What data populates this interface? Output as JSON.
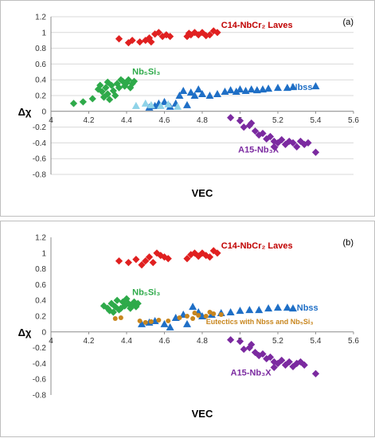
{
  "colors": {
    "laves": "#e02020",
    "laves_minor": "#8b1a1a",
    "nb5si3": "#2eaa4a",
    "nb5si3_light": "#5fd08a",
    "nbss": "#1f6fc6",
    "nbss_light": "#8fd3e8",
    "a15": "#7b2aa0",
    "eutectic": "#c8861e"
  },
  "chart_data": [
    {
      "type": "scatter",
      "panel": "(a)",
      "xlabel": "VEC",
      "ylabel": "Δχ",
      "xlim": [
        4,
        5.6
      ],
      "ylim": [
        -0.8,
        1.2
      ],
      "x_ticks": [
        "4",
        "4.2",
        "4.4",
        "4.6",
        "4.8",
        "5",
        "5.2",
        "5.4",
        "5.6"
      ],
      "y_ticks": [
        "-0.8",
        "-0.6",
        "-0.4",
        "-0.2",
        "0",
        "0.2",
        "0.4",
        "0.6",
        "0.8",
        "1",
        "1.2"
      ],
      "grid": true,
      "series": [
        {
          "name": "C14-NbCr₂ Laves",
          "color": "#e02020",
          "marker": "diamond",
          "points": [
            [
              4.36,
              0.92
            ],
            [
              4.41,
              0.87
            ],
            [
              4.43,
              0.9
            ],
            [
              4.47,
              0.88
            ],
            [
              4.5,
              0.9
            ],
            [
              4.52,
              0.93
            ],
            [
              4.53,
              0.88
            ],
            [
              4.55,
              0.98
            ],
            [
              4.57,
              1.0
            ],
            [
              4.59,
              0.95
            ],
            [
              4.61,
              0.97
            ],
            [
              4.63,
              0.95
            ],
            [
              4.72,
              0.95
            ],
            [
              4.74,
              0.97
            ],
            [
              4.76,
              1.0
            ],
            [
              4.78,
              0.97
            ],
            [
              4.8,
              1.0
            ],
            [
              4.82,
              0.96
            ],
            [
              4.84,
              0.97
            ],
            [
              4.86,
              1.02
            ],
            [
              4.88,
              1.0
            ],
            [
              4.73,
              0.99
            ]
          ]
        },
        {
          "name": "Nb₅Si₃",
          "color": "#2eaa4a",
          "marker": "diamond",
          "points": [
            [
              4.25,
              0.28
            ],
            [
              4.27,
              0.25
            ],
            [
              4.29,
              0.3
            ],
            [
              4.3,
              0.22
            ],
            [
              4.32,
              0.33
            ],
            [
              4.33,
              0.26
            ],
            [
              4.35,
              0.35
            ],
            [
              4.36,
              0.3
            ],
            [
              4.38,
              0.38
            ],
            [
              4.39,
              0.32
            ],
            [
              4.4,
              0.36
            ],
            [
              4.41,
              0.4
            ],
            [
              4.42,
              0.3
            ],
            [
              4.43,
              0.35
            ],
            [
              4.44,
              0.38
            ],
            [
              4.3,
              0.37
            ],
            [
              4.26,
              0.33
            ],
            [
              4.28,
              0.18
            ],
            [
              4.31,
              0.15
            ],
            [
              4.34,
              0.2
            ],
            [
              4.37,
              0.4
            ],
            [
              4.12,
              0.1
            ],
            [
              4.17,
              0.12
            ],
            [
              4.22,
              0.16
            ]
          ]
        },
        {
          "name": "Nbss",
          "color": "#1f6fc6",
          "marker": "triangle",
          "points": [
            [
              4.52,
              0.05
            ],
            [
              4.55,
              0.07
            ],
            [
              4.57,
              0.1
            ],
            [
              4.6,
              0.12
            ],
            [
              4.63,
              0.06
            ],
            [
              4.66,
              0.1
            ],
            [
              4.68,
              0.2
            ],
            [
              4.7,
              0.26
            ],
            [
              4.72,
              0.08
            ],
            [
              4.74,
              0.24
            ],
            [
              4.76,
              0.2
            ],
            [
              4.78,
              0.28
            ],
            [
              4.8,
              0.22
            ],
            [
              4.84,
              0.2
            ],
            [
              4.88,
              0.22
            ],
            [
              4.92,
              0.25
            ],
            [
              4.95,
              0.27
            ],
            [
              4.98,
              0.25
            ],
            [
              5.0,
              0.28
            ],
            [
              5.03,
              0.26
            ],
            [
              5.06,
              0.28
            ],
            [
              5.09,
              0.27
            ],
            [
              5.12,
              0.28
            ],
            [
              5.15,
              0.29
            ],
            [
              5.2,
              0.3
            ],
            [
              5.25,
              0.3
            ],
            [
              5.28,
              0.31
            ],
            [
              5.4,
              0.32
            ]
          ]
        },
        {
          "name": "Nbss (light)",
          "color": "#8fd3e8",
          "marker": "triangle",
          "points": [
            [
              4.45,
              0.07
            ],
            [
              4.5,
              0.1
            ],
            [
              4.53,
              0.08
            ],
            [
              4.58,
              0.07
            ],
            [
              4.62,
              0.09
            ],
            [
              4.67,
              0.06
            ]
          ]
        },
        {
          "name": "A15-Nb₃X",
          "color": "#7b2aa0",
          "marker": "diamond",
          "points": [
            [
              4.95,
              -0.08
            ],
            [
              5.0,
              -0.12
            ],
            [
              5.02,
              -0.2
            ],
            [
              5.05,
              -0.18
            ],
            [
              5.08,
              -0.25
            ],
            [
              5.1,
              -0.3
            ],
            [
              5.12,
              -0.28
            ],
            [
              5.14,
              -0.35
            ],
            [
              5.16,
              -0.32
            ],
            [
              5.18,
              -0.38
            ],
            [
              5.2,
              -0.4
            ],
            [
              5.22,
              -0.36
            ],
            [
              5.24,
              -0.42
            ],
            [
              5.26,
              -0.38
            ],
            [
              5.28,
              -0.4
            ],
            [
              5.3,
              -0.45
            ],
            [
              5.32,
              -0.38
            ],
            [
              5.34,
              -0.42
            ],
            [
              5.36,
              -0.4
            ],
            [
              5.4,
              -0.52
            ],
            [
              5.18,
              -0.45
            ],
            [
              5.06,
              -0.15
            ]
          ]
        }
      ],
      "annotations": [
        {
          "text": "C14-NbCr₂ Laves",
          "x": 4.9,
          "y": 1.06,
          "color": "#c00000"
        },
        {
          "text": "Nb₅Si₃",
          "x": 4.43,
          "y": 0.47,
          "color": "#2eaa4a"
        },
        {
          "text": "Nbss",
          "x": 5.27,
          "y": 0.27,
          "color": "#1f6fc6"
        },
        {
          "text": "A15-Nb₃X",
          "x": 4.99,
          "y": -0.52,
          "color": "#7b2aa0"
        }
      ]
    },
    {
      "type": "scatter",
      "panel": "(b)",
      "xlabel": "VEC",
      "ylabel": "Δχ",
      "xlim": [
        4,
        5.6
      ],
      "ylim": [
        -0.8,
        1.2
      ],
      "x_ticks": [
        "4",
        "4.2",
        "4.4",
        "4.6",
        "4.8",
        "5",
        "5.2",
        "5.4",
        "5.6"
      ],
      "y_ticks": [
        "-0.8",
        "-0.6",
        "-0.4",
        "-0.2",
        "0",
        "0.2",
        "0.4",
        "0.6",
        "0.8",
        "1",
        "1.2"
      ],
      "grid": false,
      "series": [
        {
          "name": "C14-NbCr₂ Laves",
          "color": "#e02020",
          "marker": "diamond",
          "points": [
            [
              4.36,
              0.9
            ],
            [
              4.41,
              0.88
            ],
            [
              4.45,
              0.92
            ],
            [
              4.48,
              0.85
            ],
            [
              4.5,
              0.9
            ],
            [
              4.52,
              0.95
            ],
            [
              4.54,
              0.88
            ],
            [
              4.56,
              1.0
            ],
            [
              4.58,
              0.97
            ],
            [
              4.6,
              0.95
            ],
            [
              4.62,
              0.93
            ],
            [
              4.72,
              0.93
            ],
            [
              4.74,
              0.98
            ],
            [
              4.76,
              1.0
            ],
            [
              4.78,
              0.96
            ],
            [
              4.8,
              1.0
            ],
            [
              4.82,
              0.97
            ],
            [
              4.84,
              0.95
            ],
            [
              4.86,
              1.03
            ],
            [
              4.88,
              1.0
            ]
          ]
        },
        {
          "name": "Nb₅Si₃",
          "color": "#2eaa4a",
          "marker": "diamond",
          "points": [
            [
              4.28,
              0.33
            ],
            [
              4.3,
              0.3
            ],
            [
              4.32,
              0.36
            ],
            [
              4.34,
              0.32
            ],
            [
              4.35,
              0.4
            ],
            [
              4.36,
              0.28
            ],
            [
              4.38,
              0.38
            ],
            [
              4.39,
              0.33
            ],
            [
              4.4,
              0.42
            ],
            [
              4.41,
              0.36
            ],
            [
              4.42,
              0.3
            ],
            [
              4.43,
              0.35
            ],
            [
              4.44,
              0.38
            ],
            [
              4.45,
              0.32
            ],
            [
              4.46,
              0.36
            ],
            [
              4.33,
              0.25
            ],
            [
              4.37,
              0.3
            ],
            [
              4.31,
              0.27
            ]
          ]
        },
        {
          "name": "Nbss",
          "color": "#1f6fc6",
          "marker": "triangle",
          "points": [
            [
              4.48,
              0.1
            ],
            [
              4.52,
              0.12
            ],
            [
              4.55,
              0.14
            ],
            [
              4.6,
              0.1
            ],
            [
              4.63,
              0.06
            ],
            [
              4.66,
              0.18
            ],
            [
              4.7,
              0.22
            ],
            [
              4.72,
              0.1
            ],
            [
              4.75,
              0.32
            ],
            [
              4.78,
              0.25
            ],
            [
              4.8,
              0.2
            ],
            [
              4.85,
              0.22
            ],
            [
              4.9,
              0.24
            ],
            [
              4.95,
              0.25
            ],
            [
              5.0,
              0.27
            ],
            [
              5.05,
              0.28
            ],
            [
              5.1,
              0.28
            ],
            [
              5.15,
              0.3
            ],
            [
              5.2,
              0.31
            ],
            [
              5.25,
              0.31
            ],
            [
              5.28,
              0.3
            ]
          ]
        },
        {
          "name": "Eutectics with Nbss and Nb₅Si₃",
          "color": "#c8861e",
          "marker": "circle",
          "points": [
            [
              4.34,
              0.17
            ],
            [
              4.37,
              0.18
            ],
            [
              4.47,
              0.14
            ],
            [
              4.5,
              0.12
            ],
            [
              4.53,
              0.13
            ],
            [
              4.57,
              0.15
            ],
            [
              4.62,
              0.14
            ],
            [
              4.68,
              0.18
            ],
            [
              4.72,
              0.2
            ],
            [
              4.75,
              0.17
            ],
            [
              4.78,
              0.21
            ],
            [
              4.82,
              0.2
            ],
            [
              4.86,
              0.23
            ],
            [
              4.9,
              0.22
            ],
            [
              4.76,
              0.24
            ],
            [
              4.84,
              0.25
            ]
          ]
        },
        {
          "name": "A15-Nb₃X",
          "color": "#7b2aa0",
          "marker": "diamond",
          "points": [
            [
              4.95,
              -0.1
            ],
            [
              5.0,
              -0.12
            ],
            [
              5.02,
              -0.22
            ],
            [
              5.05,
              -0.2
            ],
            [
              5.08,
              -0.26
            ],
            [
              5.1,
              -0.3
            ],
            [
              5.12,
              -0.28
            ],
            [
              5.14,
              -0.34
            ],
            [
              5.16,
              -0.32
            ],
            [
              5.18,
              -0.38
            ],
            [
              5.2,
              -0.4
            ],
            [
              5.22,
              -0.36
            ],
            [
              5.24,
              -0.42
            ],
            [
              5.26,
              -0.38
            ],
            [
              5.28,
              -0.44
            ],
            [
              5.3,
              -0.4
            ],
            [
              5.32,
              -0.38
            ],
            [
              5.34,
              -0.42
            ],
            [
              5.4,
              -0.53
            ],
            [
              5.18,
              -0.45
            ],
            [
              5.06,
              -0.16
            ]
          ]
        }
      ],
      "annotations": [
        {
          "text": "C14-NbCr₂ Laves",
          "x": 4.9,
          "y": 1.06,
          "color": "#c00000"
        },
        {
          "text": "Nb₅Si₃",
          "x": 4.43,
          "y": 0.47,
          "color": "#2eaa4a"
        },
        {
          "text": "Nbss",
          "x": 5.3,
          "y": 0.27,
          "color": "#1f6fc6"
        },
        {
          "text": "Eutectics with Nbss and Nb₅Si₃",
          "x": 4.82,
          "y": 0.1,
          "color": "#c8861e",
          "small": true
        },
        {
          "text": "A15-Nb₃X",
          "x": 4.95,
          "y": -0.55,
          "color": "#7b2aa0"
        }
      ]
    }
  ]
}
